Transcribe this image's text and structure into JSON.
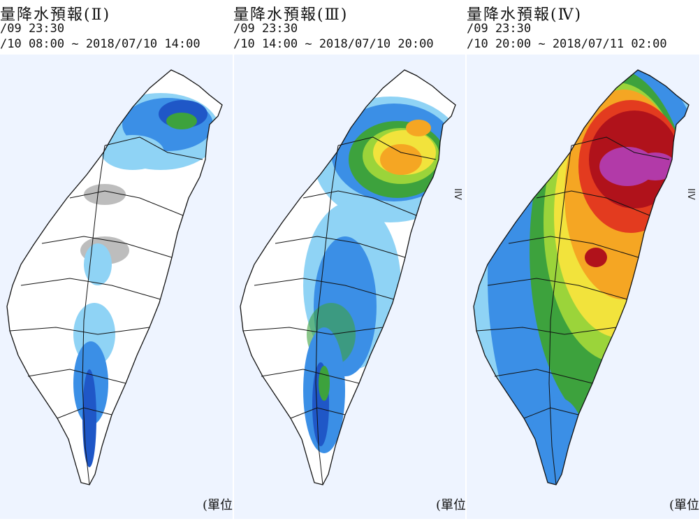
{
  "panels": [
    {
      "title": "量降水預報(Ⅱ)",
      "issued": "/09 23:30",
      "range": "/10 08:00 ~ 2018/07/10 14:00",
      "side_label": "",
      "unit": "(單位"
    },
    {
      "title": "量降水預報(Ⅲ)",
      "issued": "/09 23:30",
      "range": "/10 14:00 ~ 2018/07/10 20:00",
      "side_label": "IIV",
      "unit": "(單位"
    },
    {
      "title": "量降水預報(Ⅳ)",
      "issued": "/09 23:30",
      "range": "/10 20:00 ~ 2018/07/11 02:00",
      "side_label": "IIV",
      "unit": "(單位"
    }
  ],
  "colors": {
    "light_gray": "#bdbdbd",
    "light_blue": "#8fd3f5",
    "mid_blue": "#3b8fe6",
    "dark_blue": "#1f57c7",
    "green": "#3da23d",
    "lime": "#9bd43a",
    "yellow": "#f2e33c",
    "orange": "#f5a623",
    "red": "#e33b1f",
    "dark_red": "#b0121b",
    "magenta": "#b23aa8"
  }
}
